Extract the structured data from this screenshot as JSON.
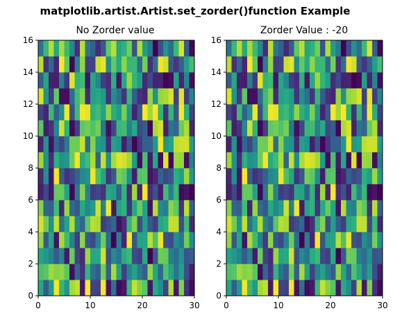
{
  "chart_data": [
    {
      "type": "heatmap",
      "title": "No Zorder value",
      "cols": 30,
      "rows": 16,
      "xlim": [
        0,
        30
      ],
      "ylim": [
        0,
        16
      ],
      "xticks": [
        "0",
        "10",
        "20",
        "30"
      ],
      "yticks": [
        "0",
        "2",
        "4",
        "6",
        "8",
        "10",
        "12",
        "14",
        "16"
      ],
      "colormap": "viridis",
      "value_range": [
        0,
        1
      ],
      "grid": false
    },
    {
      "type": "heatmap",
      "title": "Zorder Value : -20",
      "cols": 30,
      "rows": 16,
      "xlim": [
        0,
        30
      ],
      "ylim": [
        0,
        16
      ],
      "xticks": [
        "0",
        "10",
        "20",
        "30"
      ],
      "yticks": [
        "0",
        "2",
        "4",
        "6",
        "8",
        "10",
        "12",
        "14",
        "16"
      ],
      "colormap": "viridis",
      "value_range": [
        0,
        1
      ],
      "grid": false
    }
  ],
  "figure": {
    "suptitle": "matplotlib.artist.Artist.set_zorder()function Example"
  }
}
